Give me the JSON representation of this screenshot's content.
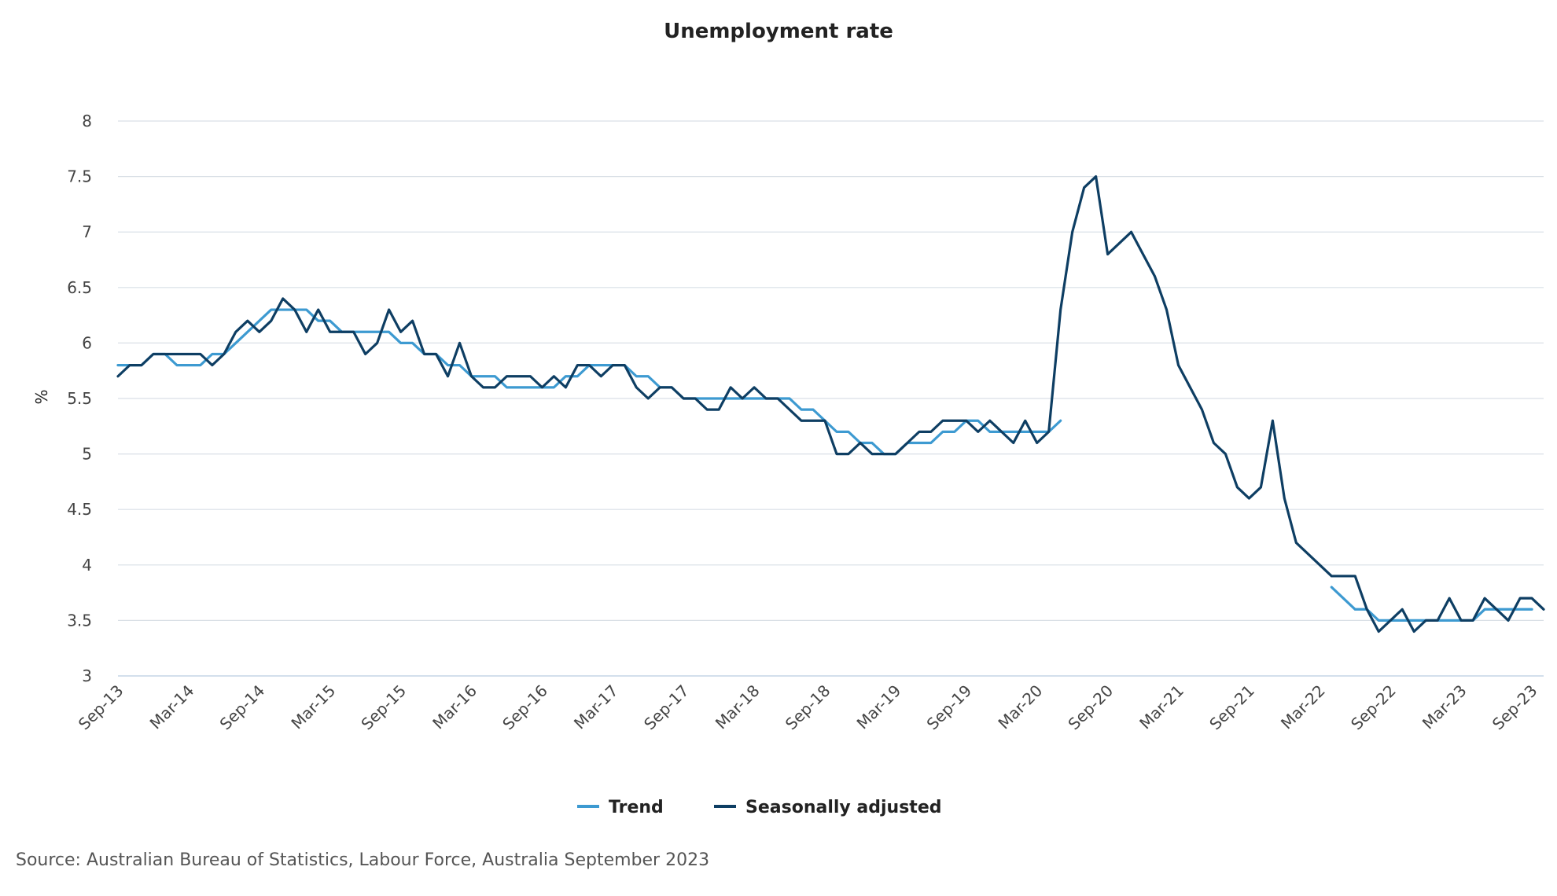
{
  "chart_data": {
    "type": "line",
    "title": "Unemployment rate",
    "xlabel": "",
    "ylabel": "%",
    "ylim": [
      3,
      8
    ],
    "yticks": [
      "3",
      "3.5",
      "4",
      "4.5",
      "5",
      "5.5",
      "6",
      "6.5",
      "7",
      "7.5",
      "8"
    ],
    "xticks": [
      "Sep-13",
      "Mar-14",
      "Sep-14",
      "Mar-15",
      "Sep-15",
      "Mar-16",
      "Sep-16",
      "Mar-17",
      "Sep-17",
      "Mar-18",
      "Sep-18",
      "Mar-19",
      "Sep-19",
      "Mar-20",
      "Sep-20",
      "Mar-21",
      "Sep-21",
      "Mar-22",
      "Sep-22",
      "Mar-23",
      "Sep-23"
    ],
    "x_start": "Sep-13",
    "x_end": "Sep-23",
    "grid": true,
    "legend_position": "bottom",
    "series": [
      {
        "name": "Trend",
        "color": "#3D9AD1",
        "values": [
          5.8,
          5.8,
          5.8,
          5.9,
          5.9,
          5.8,
          5.8,
          5.8,
          5.9,
          5.9,
          6.0,
          6.1,
          6.2,
          6.3,
          6.3,
          6.3,
          6.3,
          6.2,
          6.2,
          6.1,
          6.1,
          6.1,
          6.1,
          6.1,
          6.0,
          6.0,
          5.9,
          5.9,
          5.8,
          5.8,
          5.7,
          5.7,
          5.7,
          5.6,
          5.6,
          5.6,
          5.6,
          5.6,
          5.7,
          5.7,
          5.8,
          5.8,
          5.8,
          5.8,
          5.7,
          5.7,
          5.6,
          5.6,
          5.5,
          5.5,
          5.5,
          5.5,
          5.5,
          5.5,
          5.5,
          5.5,
          5.5,
          5.5,
          5.4,
          5.4,
          5.3,
          5.2,
          5.2,
          5.1,
          5.1,
          5.0,
          5.0,
          5.1,
          5.1,
          5.1,
          5.2,
          5.2,
          5.3,
          5.3,
          5.2,
          5.2,
          5.2,
          5.2,
          5.2,
          5.2,
          5.3,
          null,
          null,
          null,
          null,
          null,
          null,
          null,
          null,
          null,
          null,
          null,
          null,
          null,
          null,
          null,
          null,
          null,
          null,
          null,
          null,
          null,
          null,
          3.8,
          3.7,
          3.6,
          3.6,
          3.5,
          3.5,
          3.5,
          3.5,
          3.5,
          3.5,
          3.5,
          3.5,
          3.5,
          3.6,
          3.6,
          3.6,
          3.6,
          3.6
        ]
      },
      {
        "name": "Seasonally adjusted",
        "color": "#0E3E63",
        "values": [
          5.7,
          5.8,
          5.8,
          5.9,
          5.9,
          5.9,
          5.9,
          5.9,
          5.8,
          5.9,
          6.1,
          6.2,
          6.1,
          6.2,
          6.4,
          6.3,
          6.1,
          6.3,
          6.1,
          6.1,
          6.1,
          5.9,
          6.0,
          6.3,
          6.1,
          6.2,
          5.9,
          5.9,
          5.7,
          6.0,
          5.7,
          5.6,
          5.6,
          5.7,
          5.7,
          5.7,
          5.6,
          5.7,
          5.6,
          5.8,
          5.8,
          5.7,
          5.8,
          5.8,
          5.6,
          5.5,
          5.6,
          5.6,
          5.5,
          5.5,
          5.4,
          5.4,
          5.6,
          5.5,
          5.6,
          5.5,
          5.5,
          5.4,
          5.3,
          5.3,
          5.3,
          5.0,
          5.0,
          5.1,
          5.0,
          5.0,
          5.0,
          5.1,
          5.2,
          5.2,
          5.3,
          5.3,
          5.3,
          5.2,
          5.3,
          5.2,
          5.1,
          5.3,
          5.1,
          5.2,
          6.3,
          7.0,
          7.4,
          7.5,
          6.8,
          6.9,
          7.0,
          6.8,
          6.6,
          6.3,
          5.8,
          5.6,
          5.4,
          5.1,
          5.0,
          4.7,
          4.6,
          4.7,
          5.3,
          4.6,
          4.2,
          4.1,
          4.0,
          3.9,
          3.9,
          3.9,
          3.6,
          3.4,
          3.5,
          3.6,
          3.4,
          3.5,
          3.5,
          3.7,
          3.5,
          3.5,
          3.7,
          3.6,
          3.5,
          3.7,
          3.7,
          3.6
        ]
      }
    ],
    "source": "Source: Australian Bureau of Statistics, Labour Force, Australia September 2023"
  }
}
